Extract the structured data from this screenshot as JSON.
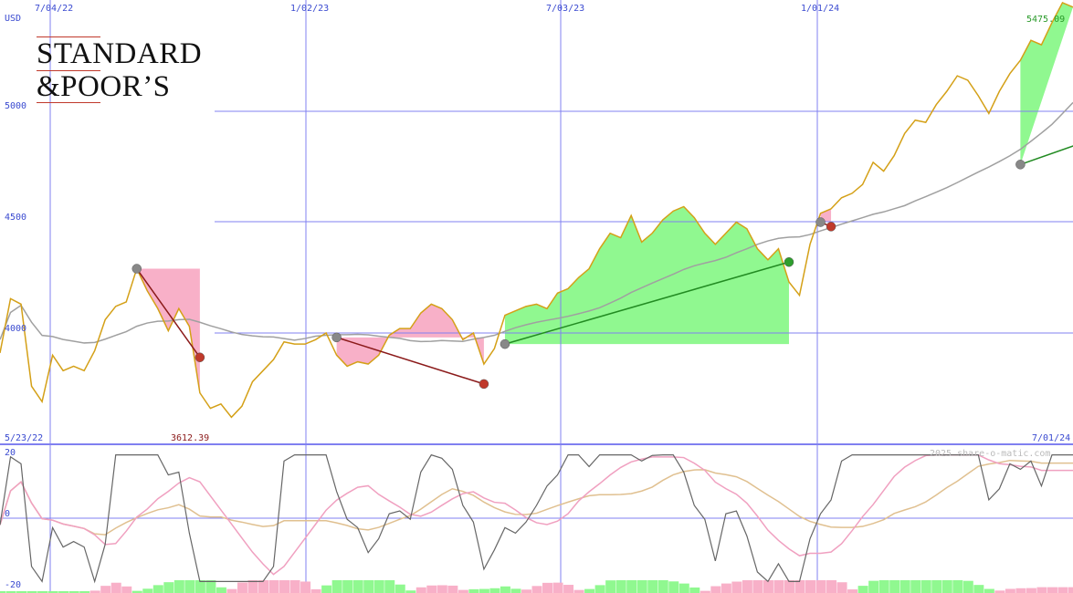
{
  "logo": {
    "line1": "STANDARD",
    "line2": "&POOR’S"
  },
  "chart_data": [
    {
      "type": "line",
      "currency_label": "USD",
      "x_tick_labels_top": [
        "7/04/22",
        "1/02/23",
        "7/03/23",
        "1/01/24"
      ],
      "x_tick_labels_bottom": [
        "5/23/22",
        "7/01/24"
      ],
      "y_tick_labels": [
        "5000",
        "4500",
        "4000"
      ],
      "ylim": [
        3500,
        5500
      ],
      "last_value_label": "5475.09",
      "min_value_label": "3612.39",
      "series": [
        {
          "role": "price",
          "color": "#d4a017",
          "values": [
            3910,
            4155,
            4130,
            3760,
            3690,
            3900,
            3830,
            3850,
            3830,
            3920,
            4060,
            4120,
            4140,
            4290,
            4190,
            4110,
            4010,
            4110,
            4030,
            3730,
            3660,
            3680,
            3620,
            3670,
            3780,
            3830,
            3880,
            3960,
            3950,
            3950,
            3970,
            4000,
            3900,
            3850,
            3870,
            3860,
            3900,
            3990,
            4020,
            4020,
            4090,
            4130,
            4110,
            4060,
            3970,
            4000,
            3860,
            3930,
            4080,
            4100,
            4120,
            4130,
            4110,
            4180,
            4200,
            4250,
            4290,
            4380,
            4450,
            4430,
            4530,
            4410,
            4450,
            4510,
            4550,
            4570,
            4520,
            4450,
            4400,
            4450,
            4500,
            4470,
            4380,
            4330,
            4380,
            4230,
            4170,
            4400,
            4540,
            4560,
            4610,
            4630,
            4670,
            4770,
            4730,
            4800,
            4900,
            4960,
            4950,
            5030,
            5090,
            5160,
            5140,
            5070,
            4990,
            5090,
            5170,
            5230,
            5320,
            5300,
            5400,
            5490,
            5470
          ]
        },
        {
          "role": "moving-average",
          "color": "#a0a0a0"
        }
      ],
      "markers": [
        {
          "date_index": 13,
          "value": 4290,
          "kind": "gray"
        },
        {
          "date_index": 19,
          "value": 3890,
          "kind": "red"
        },
        {
          "date_index": 32,
          "value": 3980,
          "kind": "gray"
        },
        {
          "date_index": 46,
          "value": 3770,
          "kind": "red"
        },
        {
          "date_index": 48,
          "value": 3950,
          "kind": "gray"
        },
        {
          "date_index": 75,
          "value": 4320,
          "kind": "green"
        },
        {
          "date_index": 78,
          "value": 4500,
          "kind": "gray"
        },
        {
          "date_index": 79,
          "value": 4480,
          "kind": "red"
        },
        {
          "date_index": 97,
          "value": 4760,
          "kind": "gray"
        },
        {
          "date_index": 115,
          "value": 5060,
          "kind": "green"
        }
      ]
    },
    {
      "type": "line",
      "y_tick_labels": [
        "20",
        "0",
        "-20"
      ],
      "ylim": [
        -20,
        20
      ],
      "watermark": "2025 share-o-matic.com",
      "series": [
        {
          "role": "oscillator",
          "color": "#666666"
        },
        {
          "role": "signal-fast",
          "color": "#f0a0c0"
        },
        {
          "role": "signal-slow",
          "color": "#e0c090"
        }
      ]
    }
  ],
  "colors": {
    "grid": "#8080f0",
    "up_fill": "#90f890",
    "down_fill": "#f8b0c8",
    "price_line": "#d4a017",
    "ma_line": "#a0a0a0"
  }
}
